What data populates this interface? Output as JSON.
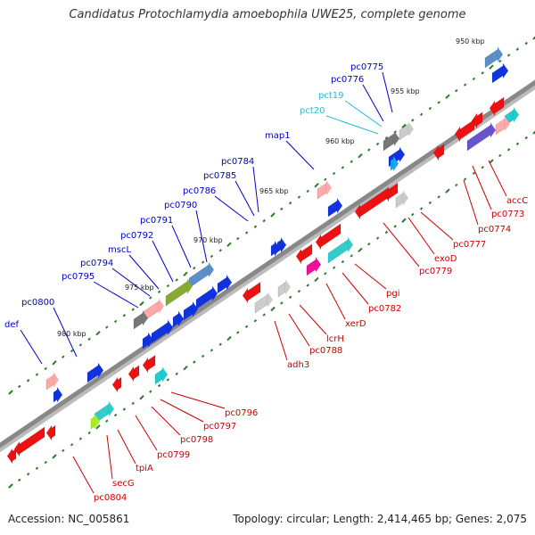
{
  "title": "Candidatus Protochlamydia amoebophila UWE25, complete genome",
  "footer": {
    "accession": "Accession: NC_005861",
    "topology": "Topology: circular; Length: 2,414,465 bp; Genes: 2,075"
  },
  "kbp_marks": [
    "950 kbp",
    "955 kbp",
    "960 kbp",
    "965 kbp",
    "970 kbp",
    "975 kbp",
    "980 kbp"
  ],
  "labels_forward": [
    "pc0775",
    "pc0776",
    "pct19",
    "pct20",
    "map1",
    "pc0784",
    "pc0785",
    "pc0786",
    "pc0790",
    "pc0791",
    "pc0792",
    "mscL",
    "pc0794",
    "pc0795",
    "pc0800",
    "def"
  ],
  "labels_reverse": [
    "accC",
    "pc0773",
    "pc0774",
    "pc0777",
    "exoD",
    "pc0779",
    "pgi",
    "pc0782",
    "xerD",
    "lcrH",
    "pc0788",
    "adh3",
    "pc0796",
    "pc0797",
    "pc0798",
    "pc0799",
    "tpiA",
    "secG",
    "pc0804"
  ],
  "colors": {
    "forward_label": "#0000cc",
    "trna_label": "#22bbdd",
    "reverse_label": "#cc0000",
    "backbone": "#888888"
  }
}
